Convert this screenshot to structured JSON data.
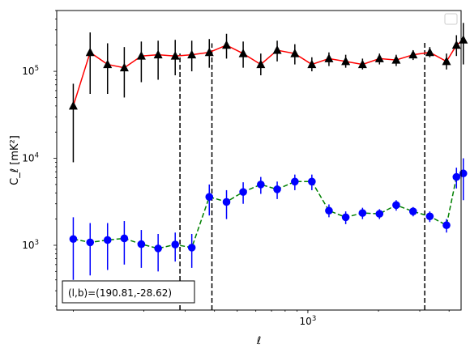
{
  "chart_data": {
    "type": "scatter",
    "xlabel": "ℓ",
    "ylabel": "C_ℓ [mK²]",
    "xscale": "log",
    "yscale": "log",
    "xlim": [
      85,
      4500
    ],
    "ylim": [
      180,
      500000
    ],
    "x_ticks": [
      {
        "value": 1000,
        "label": "10",
        "sup": "3"
      }
    ],
    "y_ticks": [
      {
        "value": 1000,
        "label": "10",
        "sup": "3"
      },
      {
        "value": 10000,
        "label": "10",
        "sup": "4"
      },
      {
        "value": 100000,
        "label": "10",
        "sup": "5"
      }
    ],
    "legend": {
      "position": "top-right",
      "entries": []
    },
    "annotation": {
      "text": "(l,b)=(190.81,-28.62)",
      "position": "bottom-left"
    },
    "vlines": [
      {
        "x": 285,
        "ymin": 180,
        "ymax": 160000
      },
      {
        "x": 390,
        "ymin": 180,
        "ymax": 210000
      },
      {
        "x": 3150,
        "ymin": 180,
        "ymax": 220000
      }
    ],
    "series": [
      {
        "marker": "triangle",
        "marker_color": "#000000",
        "line_color": "#ff0000",
        "line_style": "solid",
        "error_color": "#000000",
        "points": [
          {
            "x": 100,
            "y": 40000,
            "lo": 9000,
            "hi": 72000
          },
          {
            "x": 118,
            "y": 165000,
            "lo": 55000,
            "hi": 280000
          },
          {
            "x": 140,
            "y": 120000,
            "lo": 55000,
            "hi": 210000
          },
          {
            "x": 165,
            "y": 110000,
            "lo": 50000,
            "hi": 190000
          },
          {
            "x": 195,
            "y": 150000,
            "lo": 75000,
            "hi": 220000
          },
          {
            "x": 230,
            "y": 155000,
            "lo": 80000,
            "hi": 225000
          },
          {
            "x": 272,
            "y": 150000,
            "lo": 90000,
            "hi": 230000
          },
          {
            "x": 320,
            "y": 155000,
            "lo": 100000,
            "hi": 225000
          },
          {
            "x": 380,
            "y": 165000,
            "lo": 110000,
            "hi": 235000
          },
          {
            "x": 450,
            "y": 200000,
            "lo": 140000,
            "hi": 270000
          },
          {
            "x": 530,
            "y": 160000,
            "lo": 110000,
            "hi": 220000
          },
          {
            "x": 630,
            "y": 120000,
            "lo": 90000,
            "hi": 160000
          },
          {
            "x": 740,
            "y": 175000,
            "lo": 130000,
            "hi": 225000
          },
          {
            "x": 880,
            "y": 160000,
            "lo": 120000,
            "hi": 205000
          },
          {
            "x": 1040,
            "y": 120000,
            "lo": 100000,
            "hi": 145000
          },
          {
            "x": 1230,
            "y": 140000,
            "lo": 115000,
            "hi": 165000
          },
          {
            "x": 1450,
            "y": 130000,
            "lo": 110000,
            "hi": 155000
          },
          {
            "x": 1710,
            "y": 120000,
            "lo": 105000,
            "hi": 140000
          },
          {
            "x": 2020,
            "y": 140000,
            "lo": 120000,
            "hi": 160000
          },
          {
            "x": 2380,
            "y": 135000,
            "lo": 115000,
            "hi": 155000
          },
          {
            "x": 2810,
            "y": 155000,
            "lo": 135000,
            "hi": 175000
          },
          {
            "x": 3310,
            "y": 165000,
            "lo": 145000,
            "hi": 190000
          },
          {
            "x": 3900,
            "y": 130000,
            "lo": 105000,
            "hi": 160000
          },
          {
            "x": 4300,
            "y": 200000,
            "lo": 150000,
            "hi": 260000
          },
          {
            "x": 4600,
            "y": 230000,
            "lo": 120000,
            "hi": 360000
          }
        ]
      },
      {
        "marker": "circle",
        "marker_color": "#0000ff",
        "line_color": "#008000",
        "line_style": "dashed",
        "error_color": "#0000ff",
        "points": [
          {
            "x": 100,
            "y": 1180,
            "lo": 400,
            "hi": 2100
          },
          {
            "x": 118,
            "y": 1080,
            "lo": 450,
            "hi": 1800
          },
          {
            "x": 140,
            "y": 1150,
            "lo": 520,
            "hi": 1800
          },
          {
            "x": 165,
            "y": 1200,
            "lo": 600,
            "hi": 1900
          },
          {
            "x": 195,
            "y": 1030,
            "lo": 550,
            "hi": 1500
          },
          {
            "x": 230,
            "y": 920,
            "lo": 500,
            "hi": 1350
          },
          {
            "x": 272,
            "y": 1020,
            "lo": 650,
            "hi": 1400
          },
          {
            "x": 320,
            "y": 940,
            "lo": 550,
            "hi": 1350
          },
          {
            "x": 380,
            "y": 3600,
            "lo": 2200,
            "hi": 5000
          },
          {
            "x": 450,
            "y": 3150,
            "lo": 2000,
            "hi": 4300
          },
          {
            "x": 530,
            "y": 4100,
            "lo": 3000,
            "hi": 5300
          },
          {
            "x": 630,
            "y": 5000,
            "lo": 3900,
            "hi": 6100
          },
          {
            "x": 740,
            "y": 4400,
            "lo": 3400,
            "hi": 5400
          },
          {
            "x": 880,
            "y": 5400,
            "lo": 4300,
            "hi": 6500
          },
          {
            "x": 1040,
            "y": 5400,
            "lo": 4300,
            "hi": 6500
          },
          {
            "x": 1230,
            "y": 2500,
            "lo": 2100,
            "hi": 2950
          },
          {
            "x": 1450,
            "y": 2100,
            "lo": 1750,
            "hi": 2450
          },
          {
            "x": 1710,
            "y": 2350,
            "lo": 2000,
            "hi": 2700
          },
          {
            "x": 2020,
            "y": 2300,
            "lo": 2000,
            "hi": 2600
          },
          {
            "x": 2380,
            "y": 2900,
            "lo": 2500,
            "hi": 3300
          },
          {
            "x": 2810,
            "y": 2450,
            "lo": 2150,
            "hi": 2750
          },
          {
            "x": 3310,
            "y": 2150,
            "lo": 1850,
            "hi": 2450
          },
          {
            "x": 3900,
            "y": 1700,
            "lo": 1400,
            "hi": 2000
          },
          {
            "x": 4300,
            "y": 6100,
            "lo": 4500,
            "hi": 7800
          },
          {
            "x": 4600,
            "y": 6700,
            "lo": 3300,
            "hi": 10000
          }
        ]
      }
    ]
  }
}
